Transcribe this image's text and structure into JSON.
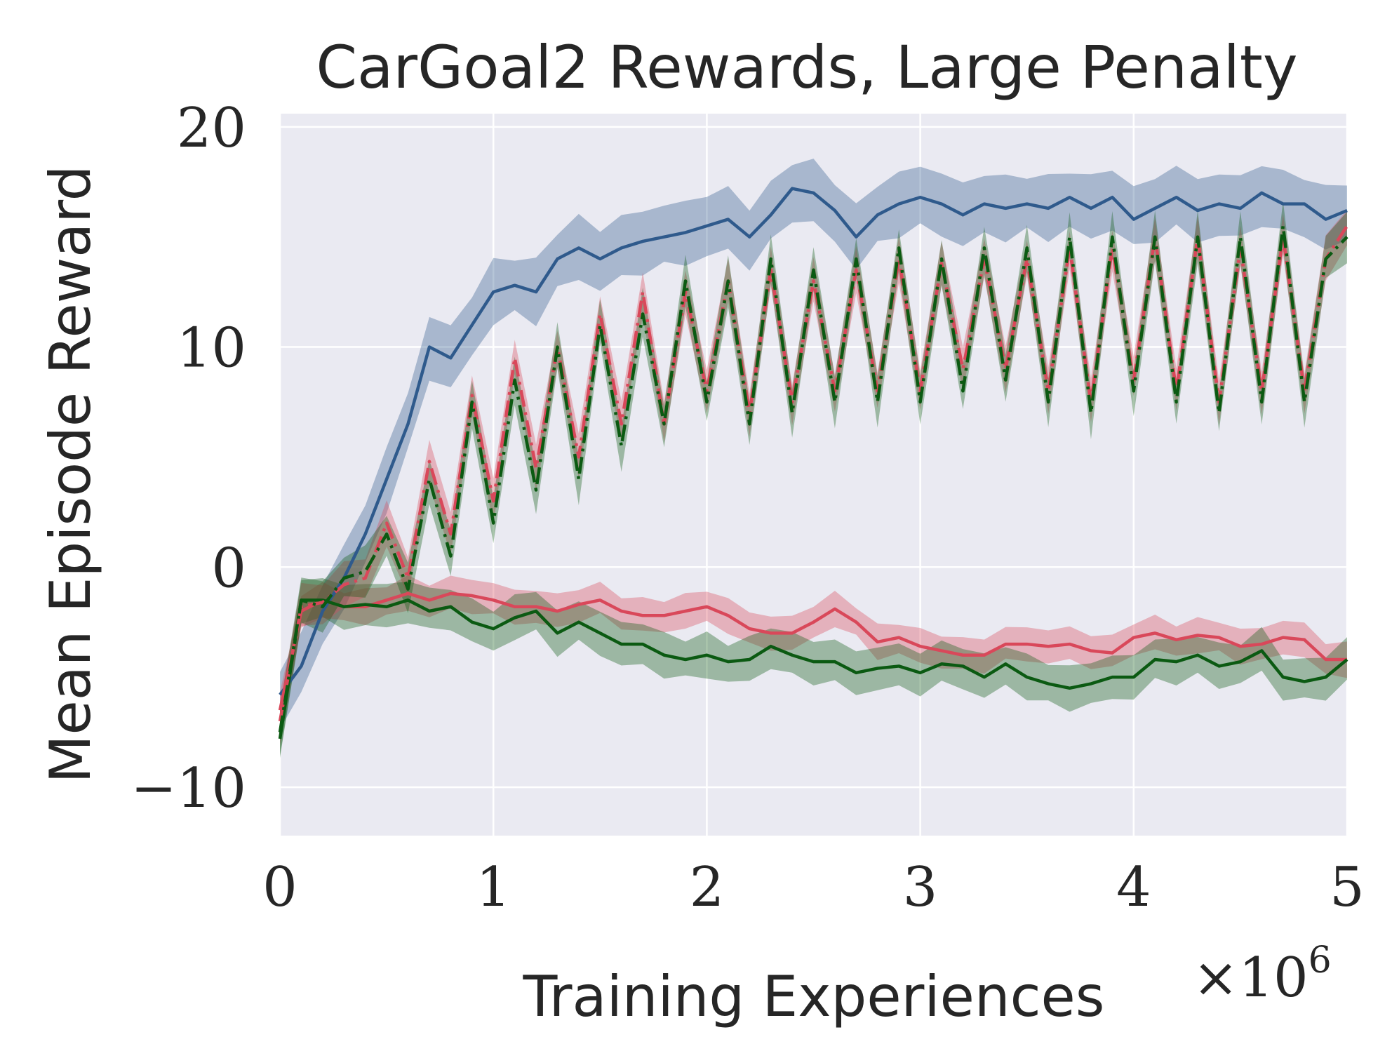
{
  "chart_data": {
    "type": "line",
    "title": "CarGoal2 Rewards, Large Penalty",
    "xlabel": "Training Experiences",
    "ylabel": "Mean Episode Reward",
    "x_multiplier_label": "×10",
    "x_multiplier_exponent": "6",
    "xlim": [
      0,
      5
    ],
    "ylim": [
      -12.2,
      20.6
    ],
    "xticks": [
      0,
      1,
      2,
      3,
      4,
      5
    ],
    "xtick_labels": [
      "0",
      "1",
      "2",
      "3",
      "4",
      "5"
    ],
    "yticks": [
      -10,
      0,
      10,
      20
    ],
    "ytick_labels": [
      "−10",
      "0",
      "10",
      "20"
    ],
    "grid": true,
    "background": "#eaeaf2",
    "x": [
      0,
      0.1,
      0.2,
      0.3,
      0.4,
      0.5,
      0.6,
      0.7,
      0.8,
      0.9,
      1.0,
      1.1,
      1.2,
      1.3,
      1.4,
      1.5,
      1.6,
      1.7,
      1.8,
      1.9,
      2.0,
      2.1,
      2.2,
      2.3,
      2.4,
      2.5,
      2.6,
      2.7,
      2.8,
      2.9,
      3.0,
      3.1,
      3.2,
      3.3,
      3.4,
      3.5,
      3.6,
      3.7,
      3.8,
      3.9,
      4.0,
      4.1,
      4.2,
      4.3,
      4.4,
      4.5,
      4.6,
      4.7,
      4.8,
      4.9,
      5.0
    ],
    "series": [
      {
        "color": "#2f5a8c",
        "style": "solid",
        "band": 1.3,
        "values": [
          -5.8,
          -4.5,
          -2,
          -0.5,
          1.5,
          4,
          6.5,
          10,
          9.5,
          11,
          12.5,
          12.8,
          12.5,
          14,
          14.5,
          14,
          14.5,
          14.8,
          15,
          15.2,
          15.5,
          15.8,
          15,
          16,
          17.2,
          17,
          16.2,
          15,
          16,
          16.5,
          16.8,
          16.5,
          16,
          16.5,
          16.3,
          16.5,
          16.3,
          16.8,
          16.3,
          16.8,
          15.8,
          16.3,
          16.8,
          16.2,
          16.5,
          16.3,
          17,
          16.5,
          16.5,
          15.8,
          16.2
        ]
      },
      {
        "color": "#d9485a",
        "style": "solid",
        "band": 0.7,
        "values": [
          -6.5,
          -2,
          -1.5,
          -1.8,
          -1.8,
          -1.5,
          -1.2,
          -1.5,
          -1.2,
          -1.3,
          -1.5,
          -1.8,
          -1.8,
          -2,
          -1.7,
          -1.5,
          -2,
          -2.2,
          -2.2,
          -2,
          -1.8,
          -2.2,
          -2.8,
          -3,
          -3,
          -2.5,
          -1.9,
          -2.5,
          -3.4,
          -3.2,
          -3.6,
          -3.8,
          -4,
          -4,
          -3.5,
          -3.5,
          -3.6,
          -3.5,
          -3.8,
          -3.9,
          -3.2,
          -3,
          -3.3,
          -3.1,
          -3.2,
          -3.6,
          -3.5,
          -3.2,
          -3.3,
          -4.2,
          -4.2
        ]
      },
      {
        "color": "#0b5a12",
        "style": "solid",
        "band": 0.9,
        "values": [
          -7.8,
          -1.5,
          -1.5,
          -1.8,
          -1.7,
          -1.8,
          -1.5,
          -2,
          -1.8,
          -2.5,
          -2.8,
          -2.3,
          -2,
          -3,
          -2.5,
          -3,
          -3.5,
          -3.5,
          -4,
          -4.2,
          -4,
          -4.3,
          -4.2,
          -3.6,
          -4,
          -4.3,
          -4.3,
          -4.8,
          -4.6,
          -4.5,
          -4.8,
          -4.4,
          -4.5,
          -5,
          -4.4,
          -5,
          -5.3,
          -5.5,
          -5.3,
          -5,
          -5,
          -4.2,
          -4.3,
          -4,
          -4.5,
          -4.3,
          -3.8,
          -5,
          -5.2,
          -5,
          -4.2
        ]
      },
      {
        "color": "#d9485a",
        "style": "dashdot",
        "band": 0.9,
        "values": [
          -7,
          -1.8,
          -1.6,
          -0.8,
          -0.5,
          2,
          -0.5,
          4.8,
          1.5,
          7.8,
          3,
          9.5,
          4.5,
          10,
          5,
          11.5,
          6.5,
          12.5,
          6.5,
          12.5,
          8,
          13,
          7,
          13.5,
          7.5,
          13,
          8,
          13.5,
          8,
          14,
          8,
          13.8,
          9,
          14,
          9,
          14,
          8,
          14.5,
          7.5,
          14.5,
          8.5,
          15,
          8,
          15,
          7.5,
          14.5,
          8,
          15,
          8,
          14,
          15.5
        ]
      },
      {
        "color": "#0b5a12",
        "style": "dashdot",
        "band": 1.0,
        "values": [
          -7.5,
          -1.5,
          -1.8,
          -0.5,
          -0.2,
          1.5,
          -1,
          4,
          0.5,
          7.5,
          2,
          8.5,
          3.5,
          10,
          4,
          11,
          5.5,
          11.5,
          6.5,
          13,
          7.5,
          13,
          6.5,
          14,
          7,
          13.5,
          7.5,
          14,
          7.5,
          14.5,
          7.5,
          14,
          8,
          14.5,
          8.5,
          14.5,
          7.5,
          15,
          7,
          15,
          8,
          15,
          7.5,
          15,
          7,
          15,
          7.5,
          15.5,
          7.5,
          14,
          15
        ]
      }
    ]
  }
}
